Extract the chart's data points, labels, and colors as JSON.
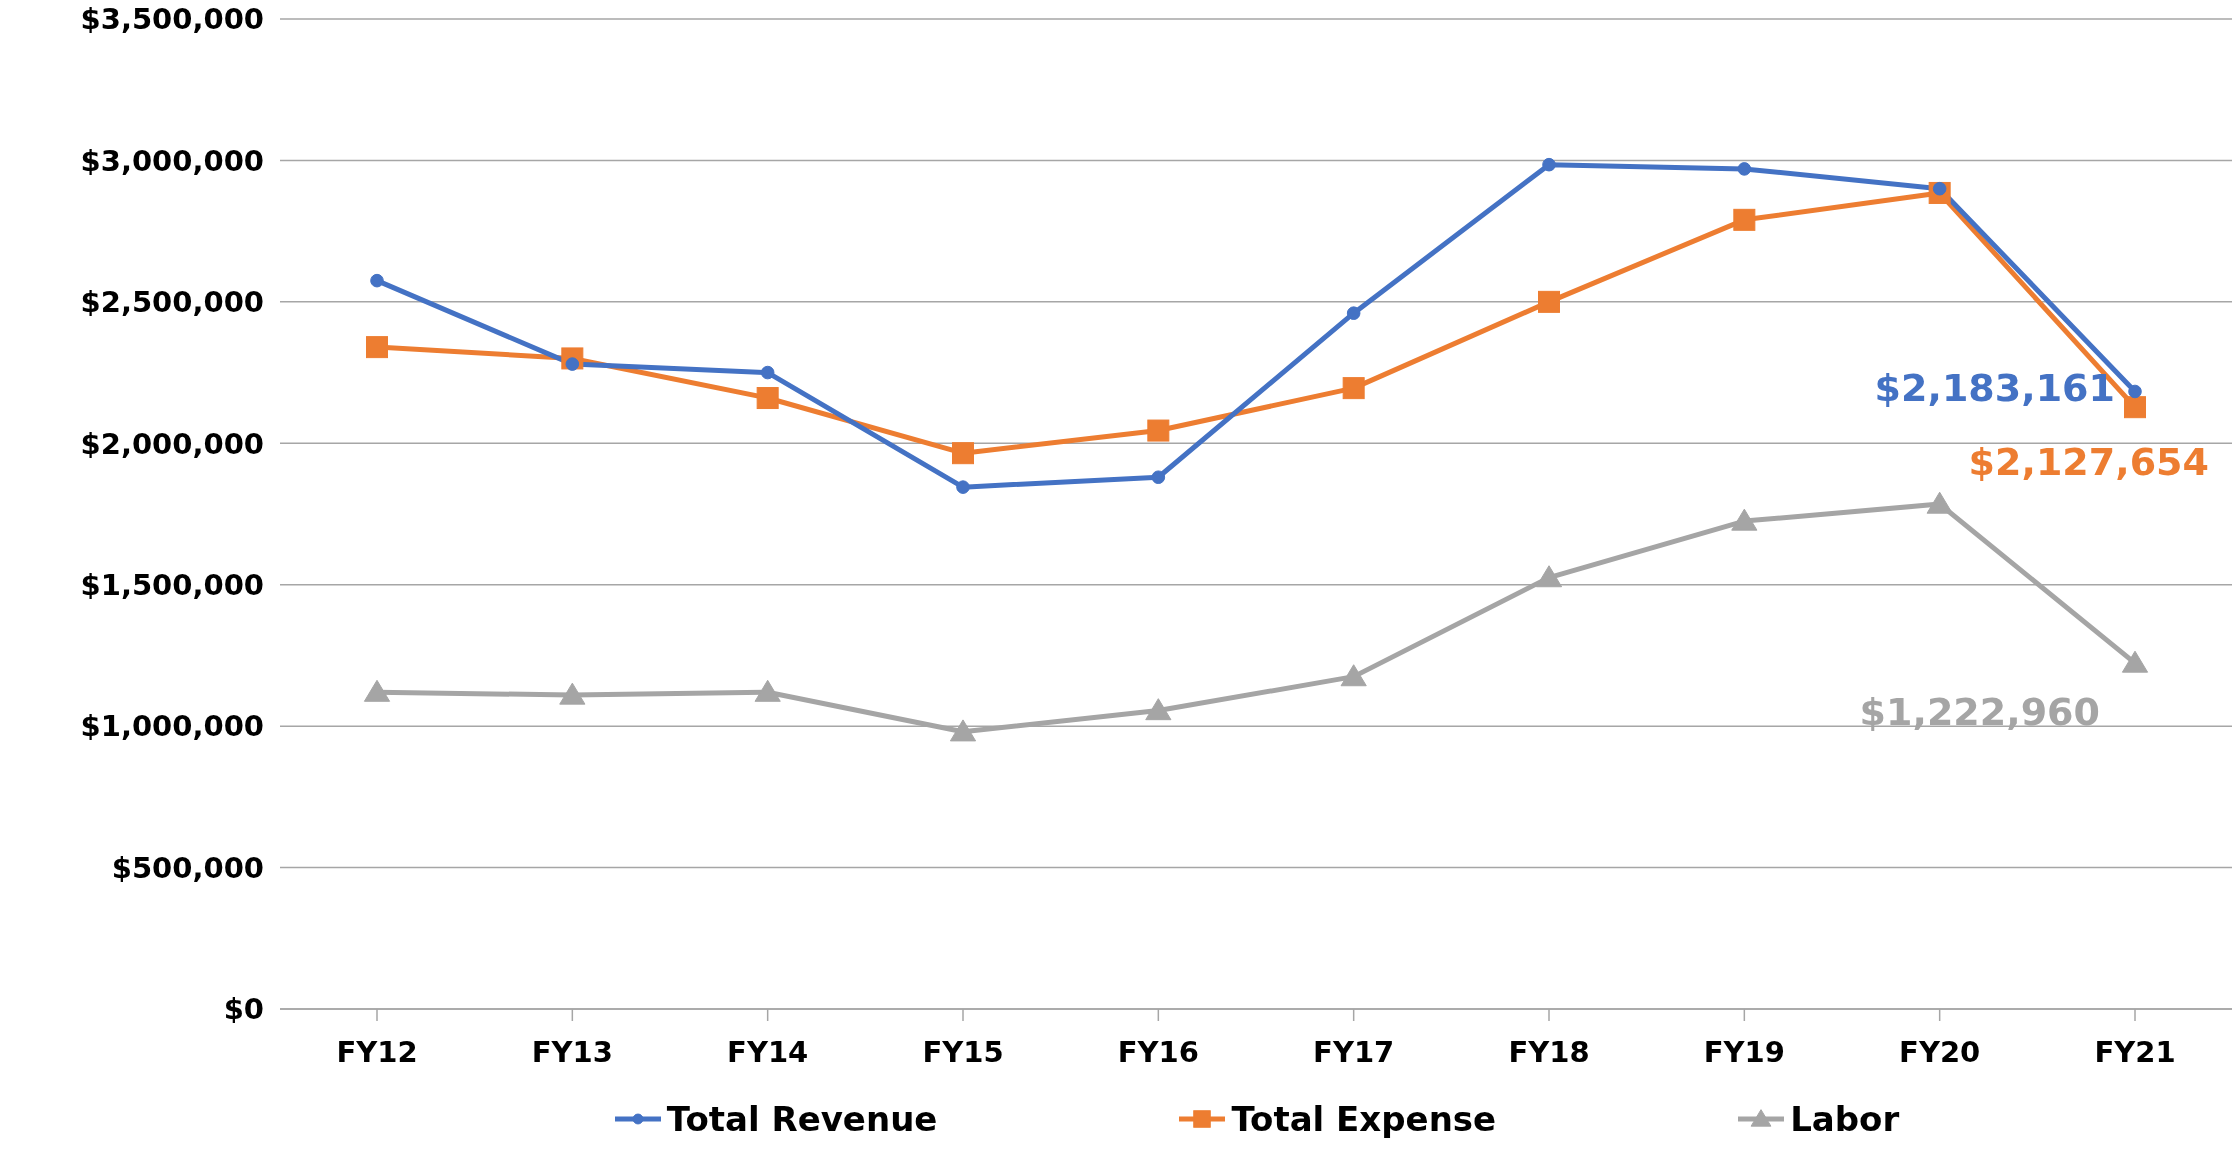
{
  "chart_data": {
    "type": "line",
    "categories": [
      "FY12",
      "FY13",
      "FY14",
      "FY15",
      "FY16",
      "FY17",
      "FY18",
      "FY19",
      "FY20",
      "FY21"
    ],
    "series": [
      {
        "name": "Total Revenue",
        "color": "#4472c4",
        "marker": "circle",
        "values": [
          2575000,
          2280000,
          2250000,
          1845000,
          1880000,
          2460000,
          2985000,
          2970000,
          2900000,
          2183161
        ],
        "value_labels": [
          null,
          null,
          null,
          null,
          null,
          null,
          null,
          null,
          null,
          "$2,183,161"
        ]
      },
      {
        "name": "Total Expense",
        "color": "#ed7d31",
        "marker": "square",
        "values": [
          2340000,
          2300000,
          2160000,
          1965000,
          2045000,
          2195000,
          2500000,
          2790000,
          2885000,
          2127654
        ],
        "value_labels": [
          null,
          null,
          null,
          null,
          null,
          null,
          null,
          null,
          null,
          "$2,127,654"
        ]
      },
      {
        "name": "Labor",
        "color": "#a5a5a5",
        "marker": "triangle",
        "values": [
          1120000,
          1110000,
          1120000,
          980000,
          1055000,
          1175000,
          1525000,
          1725000,
          1785000,
          1222960
        ],
        "value_labels": [
          null,
          null,
          null,
          null,
          null,
          null,
          null,
          null,
          null,
          "$1,222,960"
        ]
      }
    ],
    "ylim": [
      0,
      3500000
    ],
    "yticks": [
      {
        "value": 0,
        "label": "$0"
      },
      {
        "value": 500000,
        "label": "$500,000"
      },
      {
        "value": 1000000,
        "label": "$1,000,000"
      },
      {
        "value": 1500000,
        "label": "$1,500,000"
      },
      {
        "value": 2000000,
        "label": "$2,000,000"
      },
      {
        "value": 2500000,
        "label": "$2,500,000"
      },
      {
        "value": 3000000,
        "label": "$3,000,000"
      },
      {
        "value": 3500000,
        "label": "$3,500,000"
      }
    ],
    "grid": "y",
    "legend": "bottom",
    "line_style": "solid"
  }
}
